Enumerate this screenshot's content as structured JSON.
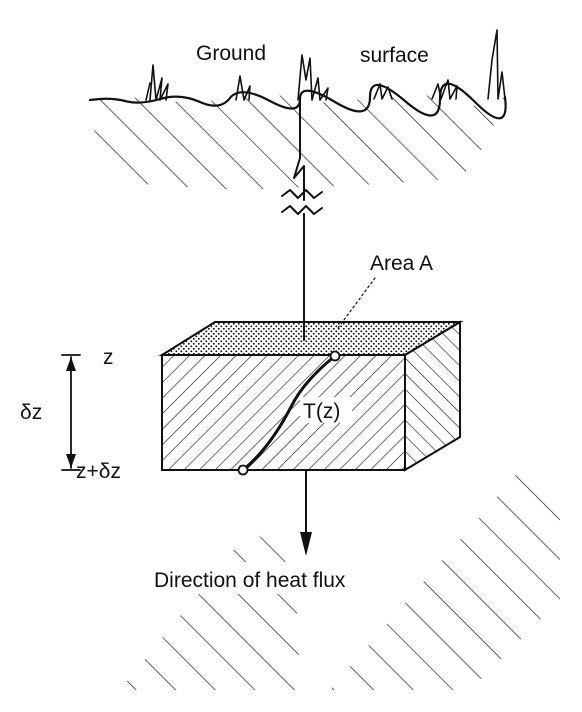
{
  "labels": {
    "ground": "Ground",
    "surface": "surface",
    "area": "Area A",
    "z_top": "z",
    "z_bottom": "z+δz",
    "delta_z": "δz",
    "temperature": "T(z)",
    "flux": "Direction of heat flux"
  },
  "colors": {
    "ink": "#111111",
    "background": "#ffffff"
  }
}
